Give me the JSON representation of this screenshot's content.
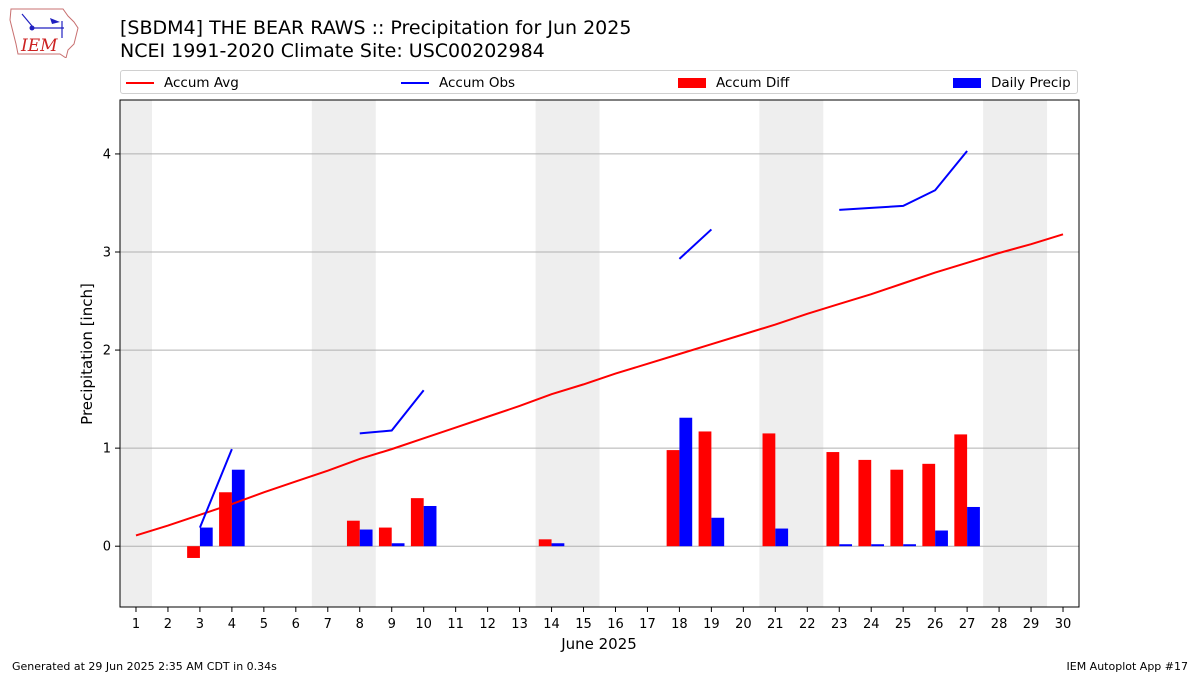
{
  "header": {
    "logo_text": "IEM",
    "title_line1": "[SBDM4] THE BEAR RAWS :: Precipitation for Jun 2025",
    "title_line2": "NCEI 1991-2020 Climate Site: USC00202984"
  },
  "legend": {
    "accum_avg": "Accum Avg",
    "accum_obs": "Accum Obs",
    "accum_diff": "Accum Diff",
    "daily_precip": "Daily Precip"
  },
  "colors": {
    "avg": "#ff0000",
    "obs": "#0000ff",
    "diff": "#ff0000",
    "daily": "#0000ff",
    "weekend_shade": "#eeeeee",
    "grid": "#b0b0b0"
  },
  "footer": {
    "generated": "Generated at 29 Jun 2025 2:35 AM CDT in 0.34s",
    "app": "IEM Autoplot App #17"
  },
  "chart_data": {
    "type": "bar",
    "xlabel": "June 2025",
    "ylabel": "Precipitation [inch]",
    "xlim": [
      0.5,
      30.5
    ],
    "ylim": [
      -0.62,
      4.55
    ],
    "y_ticks": [
      0,
      1,
      2,
      3,
      4
    ],
    "x_ticks": [
      1,
      2,
      3,
      4,
      5,
      6,
      7,
      8,
      9,
      10,
      11,
      12,
      13,
      14,
      15,
      16,
      17,
      18,
      19,
      20,
      21,
      22,
      23,
      24,
      25,
      26,
      27,
      28,
      29,
      30
    ],
    "grid": "horizontal",
    "legend_position": "top",
    "weekend_shading": [
      [
        0.5,
        1.5
      ],
      [
        6.5,
        8.5
      ],
      [
        13.5,
        15.5
      ],
      [
        20.5,
        22.5
      ],
      [
        27.5,
        29.5
      ]
    ],
    "accum_avg": {
      "name": "Accum Avg",
      "x": [
        1,
        2,
        3,
        4,
        5,
        6,
        7,
        8,
        9,
        10,
        11,
        12,
        13,
        14,
        15,
        16,
        17,
        18,
        19,
        20,
        21,
        22,
        23,
        24,
        25,
        26,
        27,
        28,
        29,
        30
      ],
      "y": [
        0.11,
        0.21,
        0.32,
        0.43,
        0.55,
        0.66,
        0.77,
        0.89,
        0.99,
        1.1,
        1.21,
        1.32,
        1.43,
        1.55,
        1.65,
        1.76,
        1.86,
        1.96,
        2.06,
        2.16,
        2.26,
        2.37,
        2.47,
        2.57,
        2.68,
        2.79,
        2.89,
        2.99,
        3.08,
        3.18
      ]
    },
    "accum_obs": {
      "name": "Accum Obs",
      "segments": [
        {
          "x": [
            3,
            4
          ],
          "y": [
            0.19,
            0.99
          ]
        },
        {
          "x": [
            8,
            9,
            10
          ],
          "y": [
            1.15,
            1.18,
            1.59
          ]
        },
        {
          "x": [
            18,
            19
          ],
          "y": [
            2.93,
            3.23
          ]
        },
        {
          "x": [
            23,
            24,
            25,
            26,
            27
          ],
          "y": [
            3.43,
            3.45,
            3.47,
            3.63,
            4.03
          ]
        }
      ]
    },
    "accum_diff": {
      "name": "Accum Diff",
      "x": [
        3,
        4,
        8,
        9,
        10,
        14,
        18,
        19,
        21,
        23,
        24,
        25,
        26,
        27
      ],
      "y": [
        -0.12,
        0.55,
        0.26,
        0.19,
        0.49,
        0.07,
        0.98,
        1.17,
        1.15,
        0.96,
        0.88,
        0.78,
        0.84,
        1.14
      ]
    },
    "daily_precip": {
      "name": "Daily Precip",
      "x": [
        3,
        4,
        8,
        9,
        10,
        14,
        18,
        19,
        21,
        23,
        24,
        25,
        26,
        27
      ],
      "y": [
        0.19,
        0.78,
        0.17,
        0.03,
        0.41,
        0.03,
        1.31,
        0.29,
        0.18,
        0.02,
        0.02,
        0.02,
        0.16,
        0.4
      ]
    }
  }
}
